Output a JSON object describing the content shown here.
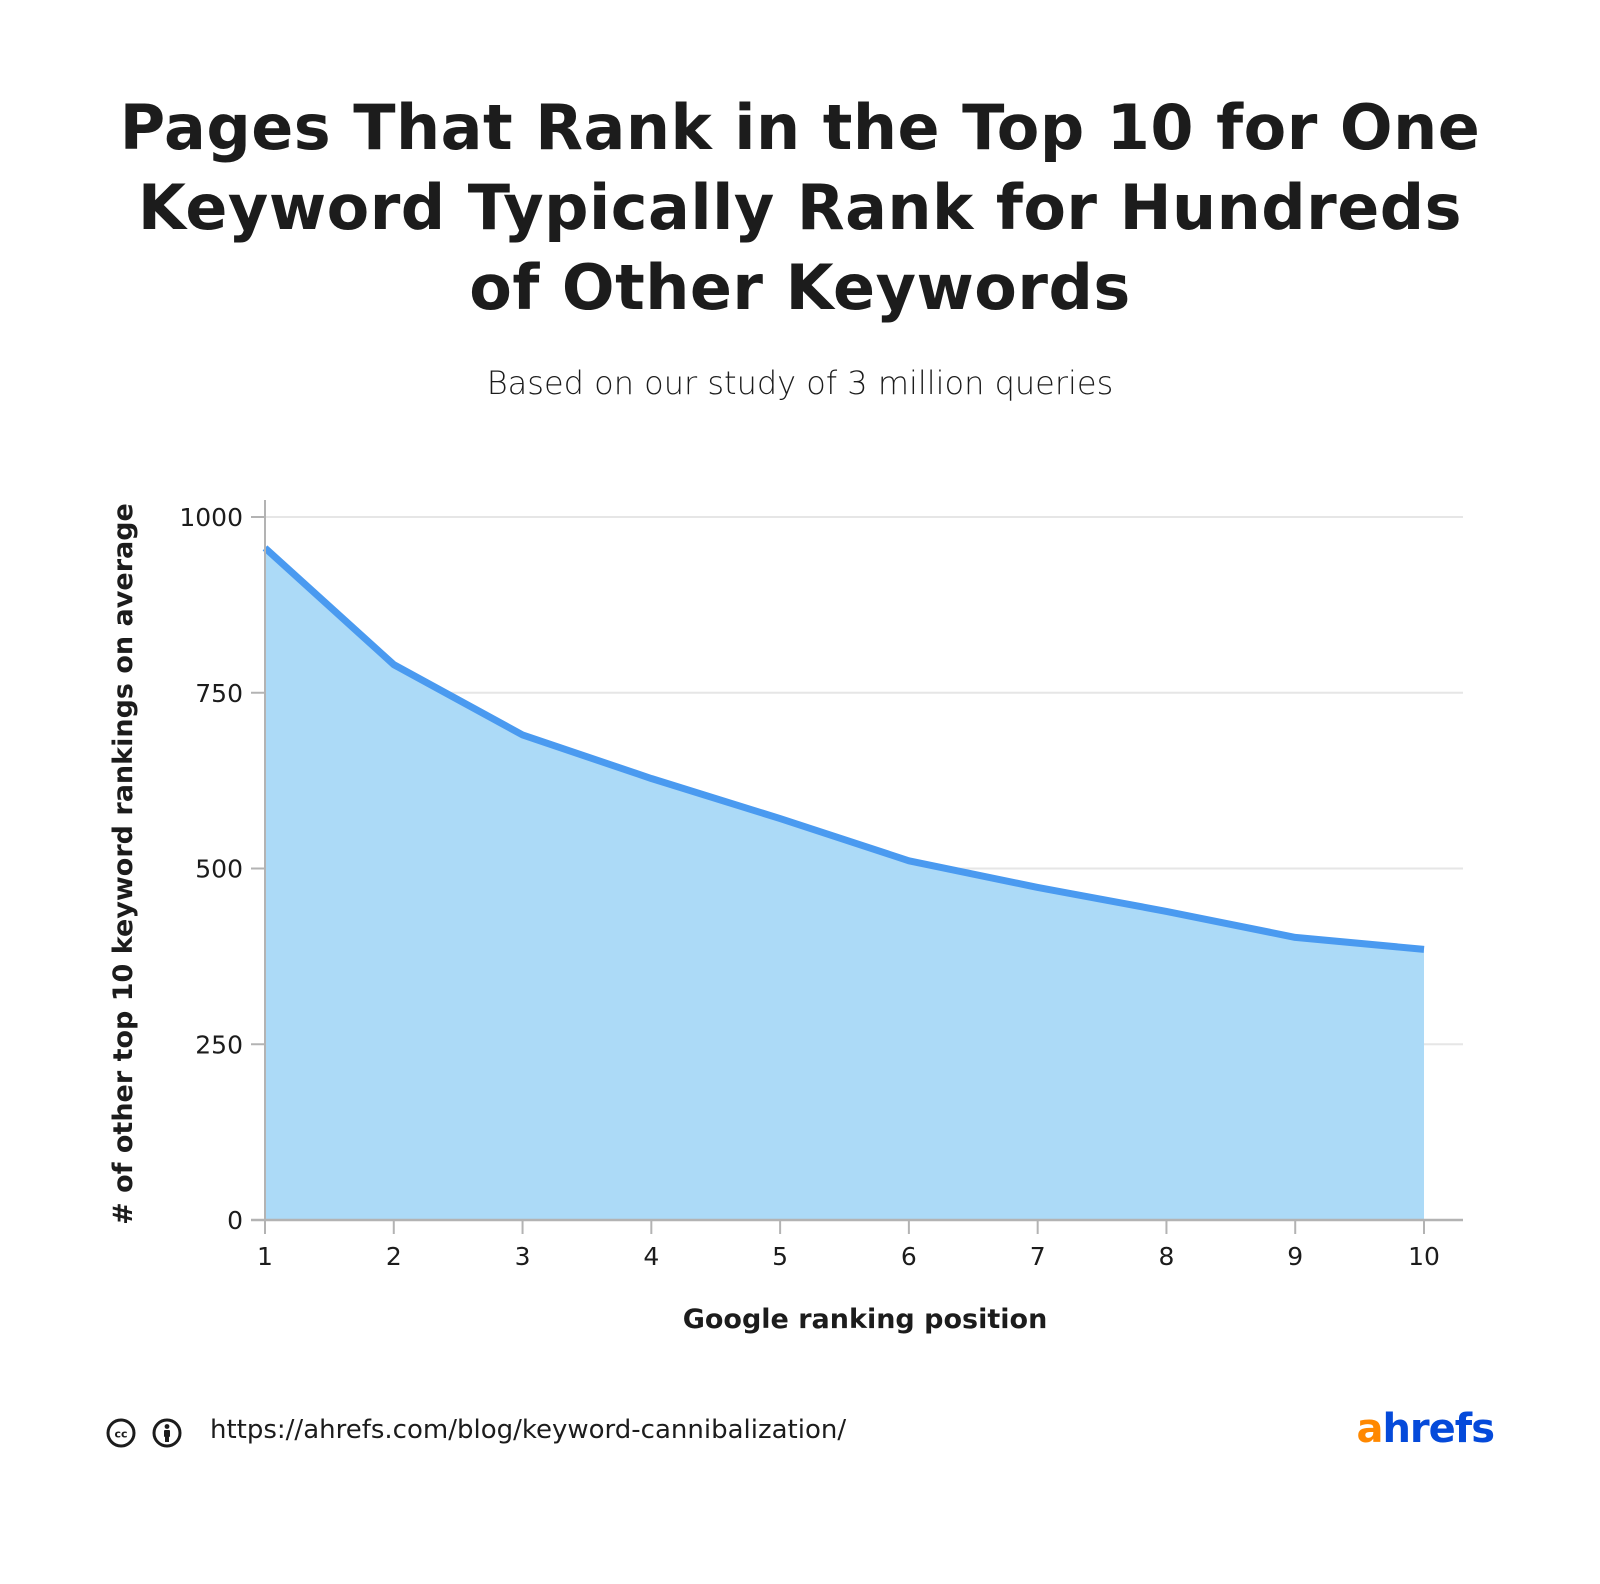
{
  "header": {
    "title_lines": [
      "Pages That Rank in the Top 10 for One",
      "Keyword Typically Rank for Hundreds",
      "of Other Keywords"
    ],
    "subtitle": "Based on our study of 3 million queries"
  },
  "chart_data": {
    "type": "area",
    "title": "Pages That Rank in the Top 10 for One Keyword Typically Rank for Hundreds of Other Keywords",
    "subtitle": "Based on our study of 3 million queries",
    "xlabel": "Google ranking position",
    "ylabel": "# of other top 10 keyword rankings on average",
    "x": [
      1,
      2,
      3,
      4,
      5,
      6,
      7,
      8,
      9,
      10
    ],
    "values": [
      956,
      790,
      690,
      628,
      571,
      511,
      473,
      439,
      402,
      385
    ],
    "ylim": [
      0,
      1000
    ],
    "yticks": [
      0,
      250,
      500,
      750,
      1000
    ],
    "xticks": [
      1,
      2,
      3,
      4,
      5,
      6,
      7,
      8,
      9,
      10
    ],
    "grid": true,
    "legend": null,
    "colors": {
      "line": "#4a9af0",
      "fill": "#acdaf7",
      "grid": "#e6e6e6",
      "axis": "#b3b3b3"
    }
  },
  "footer": {
    "url": "https://ahrefs.com/blog/keyword-cannibalization/",
    "license_icons": [
      "creative-commons-icon",
      "attribution-icon"
    ],
    "logo": {
      "first": "a",
      "rest": "hrefs",
      "first_color": "#ff8800",
      "rest_color": "#054ada"
    }
  }
}
